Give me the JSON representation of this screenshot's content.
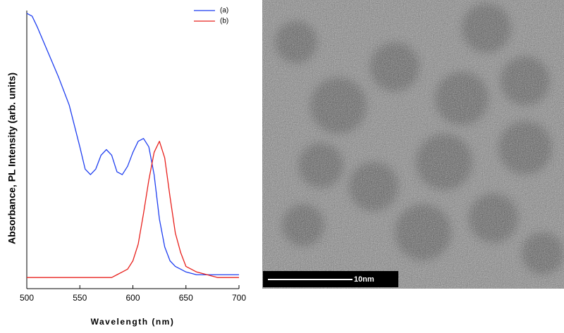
{
  "chart_data": {
    "type": "line",
    "x_label": "Wavelength (nm)",
    "y_label": "Absorbance, PL Intensity (arb. units)",
    "x": [
      500,
      505,
      510,
      520,
      530,
      540,
      550,
      555,
      560,
      565,
      570,
      575,
      580,
      585,
      590,
      595,
      600,
      605,
      610,
      615,
      620,
      625,
      630,
      635,
      640,
      645,
      650,
      660,
      670,
      680,
      690,
      700
    ],
    "series": [
      {
        "name": "(a)",
        "color": "#1f3ff0",
        "values": [
          0.99,
          0.98,
          0.94,
          0.85,
          0.76,
          0.66,
          0.51,
          0.43,
          0.41,
          0.43,
          0.48,
          0.5,
          0.48,
          0.42,
          0.41,
          0.44,
          0.49,
          0.53,
          0.54,
          0.51,
          0.41,
          0.25,
          0.15,
          0.1,
          0.08,
          0.07,
          0.06,
          0.05,
          0.05,
          0.05,
          0.05,
          0.05
        ]
      },
      {
        "name": "(b)",
        "color": "#e8201c",
        "values": [
          0.04,
          0.04,
          0.04,
          0.04,
          0.04,
          0.04,
          0.04,
          0.04,
          0.04,
          0.04,
          0.04,
          0.04,
          0.04,
          0.05,
          0.06,
          0.07,
          0.1,
          0.16,
          0.27,
          0.39,
          0.49,
          0.53,
          0.47,
          0.33,
          0.2,
          0.13,
          0.08,
          0.06,
          0.05,
          0.04,
          0.04,
          0.04
        ]
      }
    ],
    "xlim": [
      500,
      700
    ],
    "xticks": [
      500,
      550,
      600,
      650,
      700
    ],
    "ylim": [
      0,
      1
    ],
    "legend": "upper-right"
  },
  "image": {
    "scale_bar": "10nm"
  }
}
